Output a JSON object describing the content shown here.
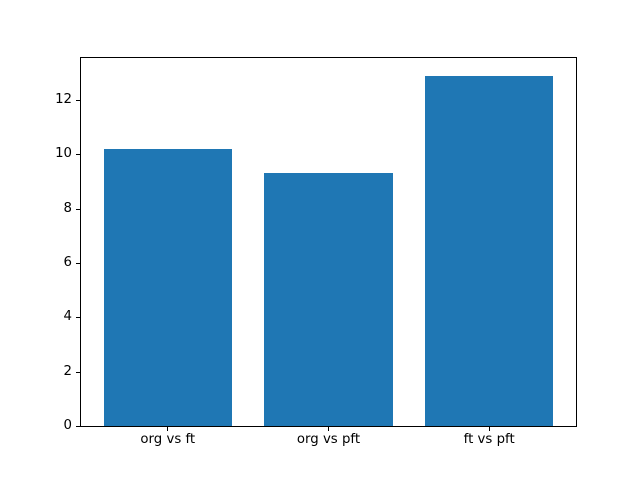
{
  "chart_data": {
    "type": "bar",
    "title": "",
    "xlabel": "",
    "ylabel": "",
    "categories": [
      "org vs ft",
      "org vs pft",
      "ft vs pft"
    ],
    "values": [
      10.2,
      9.3,
      12.9
    ],
    "yticks": [
      0,
      2,
      4,
      6,
      8,
      10,
      12
    ],
    "ylim": [
      0,
      13.545
    ],
    "xlim": [
      -0.54,
      2.54
    ],
    "bar_width_units": 0.8,
    "bar_color": "#1f77b4",
    "spine_color": "#000000",
    "tick_label_color": "#000000",
    "background_color": "#ffffff",
    "grid": false,
    "legend": "none"
  }
}
